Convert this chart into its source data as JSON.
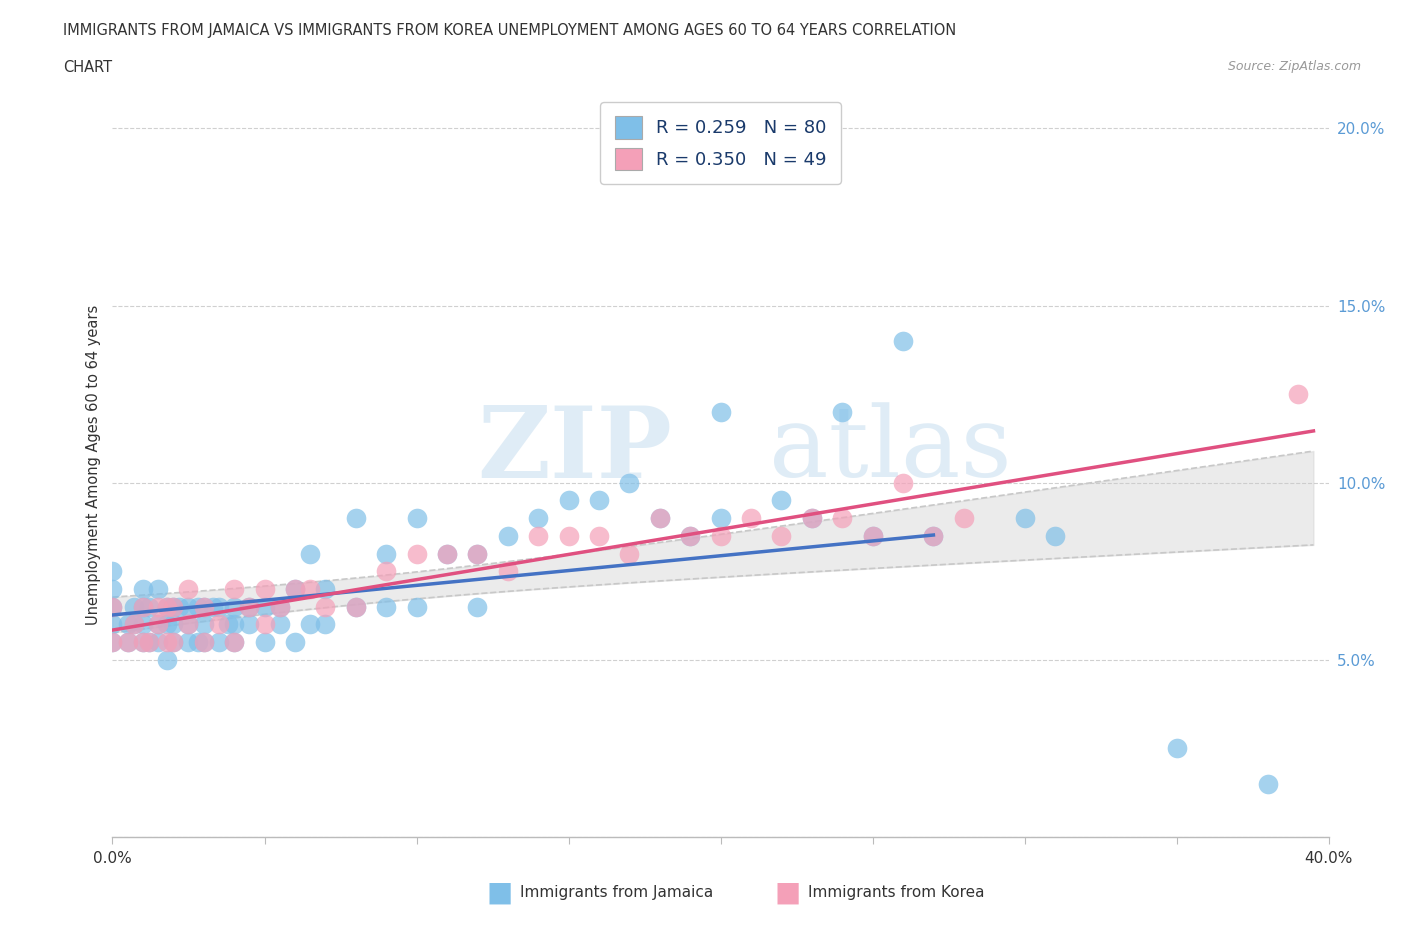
{
  "title_line1": "IMMIGRANTS FROM JAMAICA VS IMMIGRANTS FROM KOREA UNEMPLOYMENT AMONG AGES 60 TO 64 YEARS CORRELATION",
  "title_line2": "CHART",
  "source": "Source: ZipAtlas.com",
  "ylabel": "Unemployment Among Ages 60 to 64 years",
  "xlim": [
    0.0,
    0.4
  ],
  "ylim": [
    0.0,
    0.21
  ],
  "xticks": [
    0.0,
    0.05,
    0.1,
    0.15,
    0.2,
    0.25,
    0.3,
    0.35,
    0.4
  ],
  "xticklabels": [
    "0.0%",
    "",
    "",
    "",
    "",
    "",
    "",
    "",
    "40.0%"
  ],
  "yticks": [
    0.0,
    0.05,
    0.1,
    0.15,
    0.2
  ],
  "yticklabels": [
    "",
    "5.0%",
    "10.0%",
    "15.0%",
    "20.0%"
  ],
  "jamaica_color": "#7fbfe8",
  "korea_color": "#f4a0b8",
  "jamaica_line_color": "#4472c4",
  "korea_line_color": "#e05080",
  "conf_band_color": "#c8c8c8",
  "R_jamaica": 0.259,
  "N_jamaica": 80,
  "R_korea": 0.35,
  "N_korea": 49,
  "jamaica_scatter_x": [
    0.0,
    0.0,
    0.0,
    0.0,
    0.0,
    0.005,
    0.005,
    0.007,
    0.007,
    0.01,
    0.01,
    0.01,
    0.01,
    0.012,
    0.012,
    0.015,
    0.015,
    0.015,
    0.018,
    0.018,
    0.018,
    0.02,
    0.02,
    0.02,
    0.022,
    0.025,
    0.025,
    0.025,
    0.028,
    0.028,
    0.03,
    0.03,
    0.03,
    0.033,
    0.035,
    0.035,
    0.038,
    0.04,
    0.04,
    0.04,
    0.045,
    0.045,
    0.05,
    0.05,
    0.055,
    0.055,
    0.06,
    0.06,
    0.065,
    0.065,
    0.07,
    0.07,
    0.08,
    0.08,
    0.09,
    0.09,
    0.1,
    0.1,
    0.11,
    0.12,
    0.12,
    0.13,
    0.14,
    0.15,
    0.16,
    0.17,
    0.18,
    0.19,
    0.2,
    0.2,
    0.22,
    0.23,
    0.24,
    0.25,
    0.26,
    0.27,
    0.3,
    0.31,
    0.35,
    0.38
  ],
  "jamaica_scatter_y": [
    0.055,
    0.06,
    0.065,
    0.07,
    0.075,
    0.055,
    0.06,
    0.06,
    0.065,
    0.055,
    0.06,
    0.065,
    0.07,
    0.055,
    0.065,
    0.055,
    0.06,
    0.07,
    0.05,
    0.06,
    0.065,
    0.055,
    0.06,
    0.065,
    0.065,
    0.055,
    0.06,
    0.065,
    0.055,
    0.065,
    0.055,
    0.06,
    0.065,
    0.065,
    0.055,
    0.065,
    0.06,
    0.055,
    0.06,
    0.065,
    0.06,
    0.065,
    0.055,
    0.065,
    0.06,
    0.065,
    0.055,
    0.07,
    0.06,
    0.08,
    0.06,
    0.07,
    0.065,
    0.09,
    0.065,
    0.08,
    0.065,
    0.09,
    0.08,
    0.065,
    0.08,
    0.085,
    0.09,
    0.095,
    0.095,
    0.1,
    0.09,
    0.085,
    0.09,
    0.12,
    0.095,
    0.09,
    0.12,
    0.085,
    0.14,
    0.085,
    0.09,
    0.085,
    0.025,
    0.015
  ],
  "korea_scatter_x": [
    0.0,
    0.0,
    0.005,
    0.007,
    0.01,
    0.01,
    0.012,
    0.015,
    0.015,
    0.018,
    0.018,
    0.02,
    0.02,
    0.025,
    0.025,
    0.03,
    0.03,
    0.035,
    0.04,
    0.04,
    0.045,
    0.05,
    0.05,
    0.055,
    0.06,
    0.065,
    0.07,
    0.08,
    0.09,
    0.1,
    0.11,
    0.12,
    0.13,
    0.14,
    0.15,
    0.16,
    0.17,
    0.18,
    0.19,
    0.2,
    0.21,
    0.22,
    0.23,
    0.24,
    0.25,
    0.26,
    0.27,
    0.28,
    0.39
  ],
  "korea_scatter_y": [
    0.055,
    0.065,
    0.055,
    0.06,
    0.055,
    0.065,
    0.055,
    0.06,
    0.065,
    0.055,
    0.065,
    0.055,
    0.065,
    0.06,
    0.07,
    0.055,
    0.065,
    0.06,
    0.055,
    0.07,
    0.065,
    0.06,
    0.07,
    0.065,
    0.07,
    0.07,
    0.065,
    0.065,
    0.075,
    0.08,
    0.08,
    0.08,
    0.075,
    0.085,
    0.085,
    0.085,
    0.08,
    0.09,
    0.085,
    0.085,
    0.09,
    0.085,
    0.09,
    0.09,
    0.085,
    0.1,
    0.085,
    0.09,
    0.125
  ],
  "watermark_zip": "ZIP",
  "watermark_atlas": "atlas",
  "background_color": "#ffffff",
  "grid_color": "#d0d0d0",
  "ytick_color": "#5b9bd5",
  "text_color": "#333333"
}
